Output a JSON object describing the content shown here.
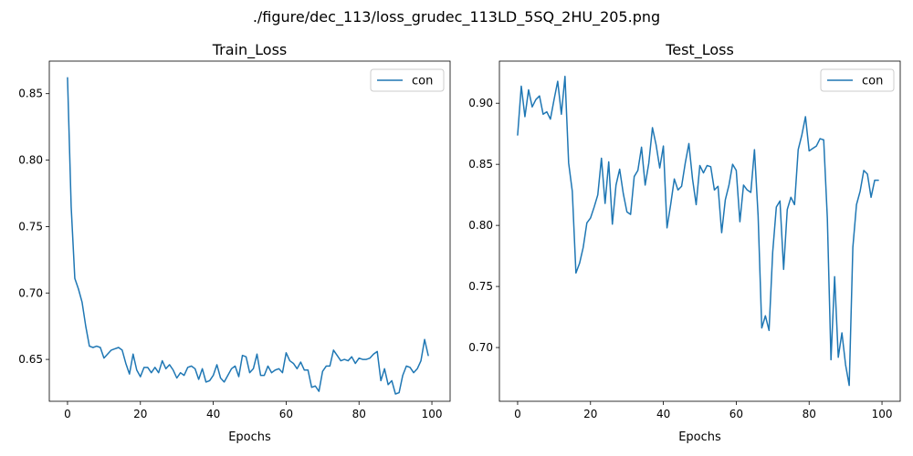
{
  "figure": {
    "suptitle": "./figure/dec_113/loss_grudec_113LD_5SQ_2HU_205.png"
  },
  "colors": {
    "line": "#1f77b4",
    "axes": "#000000",
    "legend_border": "#cccccc",
    "background": "#ffffff"
  },
  "chart_data": [
    {
      "type": "line",
      "title": "Train_Loss",
      "xlabel": "Epochs",
      "ylabel": "",
      "xlim": [
        -5,
        105
      ],
      "ylim": [
        0.6185,
        0.8745
      ],
      "xticks": [
        0,
        20,
        40,
        60,
        80,
        100
      ],
      "xtick_labels": [
        "0",
        "20",
        "40",
        "60",
        "80",
        "100"
      ],
      "yticks": [
        0.65,
        0.7,
        0.75,
        0.8,
        0.85
      ],
      "ytick_labels": [
        "0.65",
        "0.70",
        "0.75",
        "0.80",
        "0.85"
      ],
      "grid": false,
      "legend_position": "upper right",
      "series": [
        {
          "name": "con",
          "x": [
            0,
            1,
            2,
            3,
            4,
            5,
            6,
            7,
            8,
            9,
            10,
            11,
            12,
            13,
            14,
            15,
            16,
            17,
            18,
            19,
            20,
            21,
            22,
            23,
            24,
            25,
            26,
            27,
            28,
            29,
            30,
            31,
            32,
            33,
            34,
            35,
            36,
            37,
            38,
            39,
            40,
            41,
            42,
            43,
            44,
            45,
            46,
            47,
            48,
            49,
            50,
            51,
            52,
            53,
            54,
            55,
            56,
            57,
            58,
            59,
            60,
            61,
            62,
            63,
            64,
            65,
            66,
            67,
            68,
            69,
            70,
            71,
            72,
            73,
            74,
            75,
            76,
            77,
            78,
            79,
            80,
            81,
            82,
            83,
            84,
            85,
            86,
            87,
            88,
            89,
            90,
            91,
            92,
            93,
            94,
            95,
            96,
            97,
            98,
            99
          ],
          "y": [
            0.862,
            0.765,
            0.711,
            0.703,
            0.693,
            0.675,
            0.66,
            0.659,
            0.66,
            0.659,
            0.651,
            0.654,
            0.657,
            0.658,
            0.659,
            0.657,
            0.647,
            0.639,
            0.654,
            0.642,
            0.637,
            0.644,
            0.644,
            0.64,
            0.644,
            0.64,
            0.649,
            0.643,
            0.646,
            0.642,
            0.636,
            0.64,
            0.638,
            0.644,
            0.645,
            0.643,
            0.635,
            0.643,
            0.633,
            0.634,
            0.638,
            0.646,
            0.636,
            0.633,
            0.638,
            0.643,
            0.645,
            0.637,
            0.653,
            0.652,
            0.64,
            0.643,
            0.654,
            0.638,
            0.638,
            0.645,
            0.64,
            0.642,
            0.643,
            0.64,
            0.655,
            0.649,
            0.647,
            0.643,
            0.648,
            0.642,
            0.642,
            0.629,
            0.63,
            0.626,
            0.641,
            0.645,
            0.645,
            0.657,
            0.653,
            0.649,
            0.65,
            0.649,
            0.652,
            0.647,
            0.651,
            0.65,
            0.65,
            0.651,
            0.654,
            0.656,
            0.634,
            0.643,
            0.631,
            0.634,
            0.624,
            0.625,
            0.638,
            0.645,
            0.644,
            0.64,
            0.643,
            0.649,
            0.665,
            0.653
          ]
        }
      ]
    },
    {
      "type": "line",
      "title": "Test_Loss",
      "xlabel": "Epochs",
      "ylabel": "",
      "xlim": [
        -5,
        105
      ],
      "ylim": [
        0.656,
        0.9345
      ],
      "xticks": [
        0,
        20,
        40,
        60,
        80,
        100
      ],
      "xtick_labels": [
        "0",
        "20",
        "40",
        "60",
        "80",
        "100"
      ],
      "yticks": [
        0.7,
        0.75,
        0.8,
        0.85,
        0.9
      ],
      "ytick_labels": [
        "0.70",
        "0.75",
        "0.80",
        "0.85",
        "0.90"
      ],
      "grid": false,
      "legend_position": "upper right",
      "series": [
        {
          "name": "con",
          "x": [
            0,
            1,
            2,
            3,
            4,
            5,
            6,
            7,
            8,
            9,
            10,
            11,
            12,
            13,
            14,
            15,
            16,
            17,
            18,
            19,
            20,
            21,
            22,
            23,
            24,
            25,
            26,
            27,
            28,
            29,
            30,
            31,
            32,
            33,
            34,
            35,
            36,
            37,
            38,
            39,
            40,
            41,
            42,
            43,
            44,
            45,
            46,
            47,
            48,
            49,
            50,
            51,
            52,
            53,
            54,
            55,
            56,
            57,
            58,
            59,
            60,
            61,
            62,
            63,
            64,
            65,
            66,
            67,
            68,
            69,
            70,
            71,
            72,
            73,
            74,
            75,
            76,
            77,
            78,
            79,
            80,
            81,
            82,
            83,
            84,
            85,
            86,
            87,
            88,
            89,
            90,
            91,
            92,
            93,
            94,
            95,
            96,
            97,
            98,
            99
          ],
          "y": [
            0.874,
            0.914,
            0.889,
            0.911,
            0.897,
            0.903,
            0.906,
            0.891,
            0.893,
            0.887,
            0.903,
            0.918,
            0.891,
            0.922,
            0.851,
            0.828,
            0.761,
            0.769,
            0.782,
            0.802,
            0.806,
            0.815,
            0.825,
            0.855,
            0.818,
            0.852,
            0.801,
            0.833,
            0.846,
            0.826,
            0.811,
            0.809,
            0.84,
            0.845,
            0.864,
            0.833,
            0.851,
            0.88,
            0.866,
            0.847,
            0.865,
            0.798,
            0.817,
            0.838,
            0.829,
            0.832,
            0.851,
            0.867,
            0.838,
            0.817,
            0.849,
            0.843,
            0.849,
            0.848,
            0.829,
            0.832,
            0.794,
            0.821,
            0.833,
            0.85,
            0.845,
            0.803,
            0.833,
            0.829,
            0.827,
            0.862,
            0.808,
            0.716,
            0.726,
            0.714,
            0.778,
            0.815,
            0.82,
            0.764,
            0.813,
            0.823,
            0.817,
            0.862,
            0.874,
            0.889,
            0.861,
            0.863,
            0.865,
            0.871,
            0.87,
            0.806,
            0.69,
            0.758,
            0.692,
            0.712,
            0.686,
            0.669,
            0.782,
            0.817,
            0.828,
            0.845,
            0.842,
            0.823,
            0.837,
            0.837
          ]
        }
      ]
    }
  ]
}
